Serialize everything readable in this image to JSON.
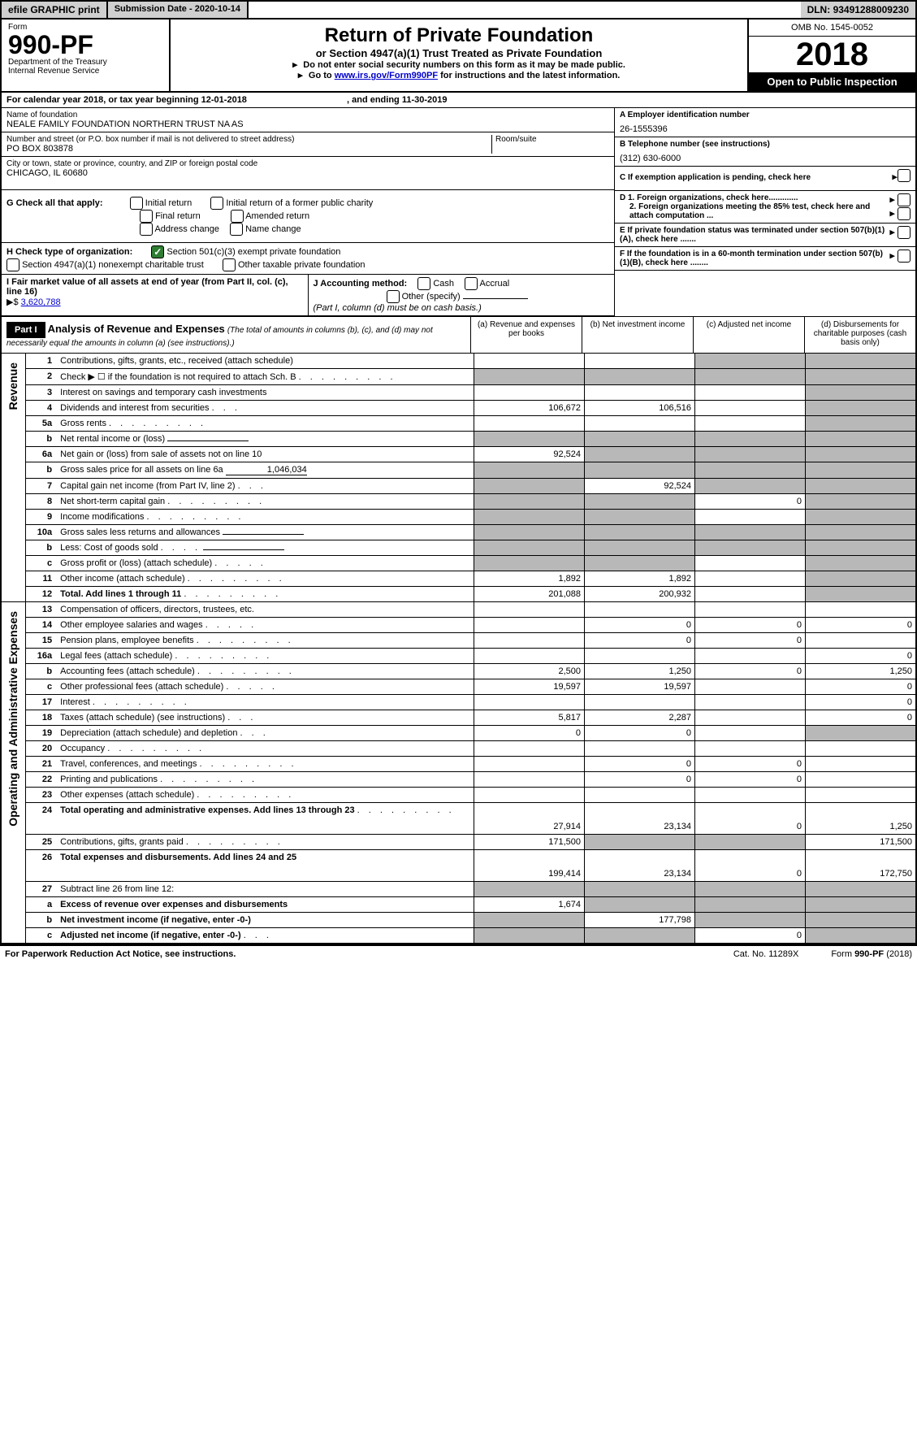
{
  "topbar": {
    "efile": "efile GRAPHIC print",
    "submission_label": "Submission Date - ",
    "submission_date": "2020-10-14",
    "dln_label": "DLN: ",
    "dln": "93491288009230"
  },
  "header": {
    "form_label": "Form",
    "form_no": "990-PF",
    "dept": "Department of the Treasury",
    "irs": "Internal Revenue Service",
    "title": "Return of Private Foundation",
    "subtitle": "or Section 4947(a)(1) Trust Treated as Private Foundation",
    "instr1": "Do not enter social security numbers on this form as it may be made public.",
    "instr2_pre": "Go to ",
    "instr2_link": "www.irs.gov/Form990PF",
    "instr2_post": " for instructions and the latest information.",
    "omb": "OMB No. 1545-0052",
    "year": "2018",
    "open": "Open to Public Inspection"
  },
  "cal": {
    "text_pre": "For calendar year 2018, or tax year beginning ",
    "begin": "12-01-2018",
    "text_mid": " , and ending ",
    "end": "11-30-2019"
  },
  "id": {
    "name_label": "Name of foundation",
    "name": "NEALE FAMILY FOUNDATION NORTHERN TRUST NA AS",
    "addr_label": "Number and street (or P.O. box number if mail is not delivered to street address)",
    "room_label": "Room/suite",
    "addr": "PO BOX 803878",
    "city_label": "City or town, state or province, country, and ZIP or foreign postal code",
    "city": "CHICAGO, IL  60680",
    "ein_label": "A Employer identification number",
    "ein": "26-1555396",
    "phone_label": "B Telephone number (see instructions)",
    "phone": "(312) 630-6000",
    "c_label": "C If exemption application is pending, check here",
    "d1_label": "D 1. Foreign organizations, check here.............",
    "d2_label": "2. Foreign organizations meeting the 85% test, check here and attach computation ...",
    "e_label": "E If private foundation status was terminated under section 507(b)(1)(A), check here .......",
    "f_label": "F If the foundation is in a 60-month termination under section 507(b)(1)(B), check here ........"
  },
  "g": {
    "label": "G Check all that apply:",
    "opts": [
      "Initial return",
      "Initial return of a former public charity",
      "Final return",
      "Amended return",
      "Address change",
      "Name change"
    ]
  },
  "h": {
    "label": "H Check type of organization:",
    "opt1": "Section 501(c)(3) exempt private foundation",
    "opt2": "Section 4947(a)(1) nonexempt charitable trust",
    "opt3": "Other taxable private foundation"
  },
  "i": {
    "label": "I Fair market value of all assets at end of year (from Part II, col. (c), line 16)",
    "prefix": "▶$",
    "value": "3,620,788"
  },
  "j": {
    "label": "J Accounting method:",
    "cash": "Cash",
    "accrual": "Accrual",
    "other": "Other (specify)",
    "note": "(Part I, column (d) must be on cash basis.)"
  },
  "part1": {
    "tag": "Part I",
    "title": "Analysis of Revenue and Expenses",
    "note": "(The total of amounts in columns (b), (c), and (d) may not necessarily equal the amounts in column (a) (see instructions).)",
    "col_a": "(a) Revenue and expenses per books",
    "col_b": "(b) Net investment income",
    "col_c": "(c) Adjusted net income",
    "col_d": "(d) Disbursements for charitable purposes (cash basis only)"
  },
  "vert": {
    "revenue": "Revenue",
    "expenses": "Operating and Administrative Expenses"
  },
  "rows": [
    {
      "n": "1",
      "d": "Contributions, gifts, grants, etc., received (attach schedule)",
      "a": "",
      "b": "",
      "c": "",
      "dd": "",
      "ga": false,
      "gb": false,
      "gc": true,
      "gd": true
    },
    {
      "n": "2",
      "d": "Check ▶ ☐ if the foundation is not required to attach Sch. B",
      "a": "",
      "b": "",
      "c": "",
      "dd": "",
      "ga": true,
      "gb": true,
      "gc": true,
      "gd": true,
      "dots": true
    },
    {
      "n": "3",
      "d": "Interest on savings and temporary cash investments",
      "a": "",
      "b": "",
      "c": "",
      "dd": "",
      "ga": false,
      "gb": false,
      "gc": false,
      "gd": true
    },
    {
      "n": "4",
      "d": "Dividends and interest from securities",
      "a": "106,672",
      "b": "106,516",
      "c": "",
      "dd": "",
      "ga": false,
      "gb": false,
      "gc": false,
      "gd": true,
      "dots3": true
    },
    {
      "n": "5a",
      "d": "Gross rents",
      "a": "",
      "b": "",
      "c": "",
      "dd": "",
      "ga": false,
      "gb": false,
      "gc": false,
      "gd": true,
      "dots": true
    },
    {
      "n": "b",
      "d": "Net rental income or (loss)",
      "a": "",
      "b": "",
      "c": "",
      "dd": "",
      "ga": true,
      "gb": true,
      "gc": true,
      "gd": true,
      "inline": true
    },
    {
      "n": "6a",
      "d": "Net gain or (loss) from sale of assets not on line 10",
      "a": "92,524",
      "b": "",
      "c": "",
      "dd": "",
      "ga": false,
      "gb": true,
      "gc": true,
      "gd": true
    },
    {
      "n": "b",
      "d": "Gross sales price for all assets on line 6a",
      "a": "",
      "b": "",
      "c": "",
      "dd": "",
      "ga": true,
      "gb": true,
      "gc": true,
      "gd": true,
      "inline": true,
      "inline_val": "1,046,034"
    },
    {
      "n": "7",
      "d": "Capital gain net income (from Part IV, line 2)",
      "a": "",
      "b": "92,524",
      "c": "",
      "dd": "",
      "ga": true,
      "gb": false,
      "gc": true,
      "gd": true,
      "dots3": true
    },
    {
      "n": "8",
      "d": "Net short-term capital gain",
      "a": "",
      "b": "",
      "c": "0",
      "dd": "",
      "ga": true,
      "gb": true,
      "gc": false,
      "gd": true,
      "dots": true
    },
    {
      "n": "9",
      "d": "Income modifications",
      "a": "",
      "b": "",
      "c": "",
      "dd": "",
      "ga": true,
      "gb": true,
      "gc": false,
      "gd": true,
      "dots": true
    },
    {
      "n": "10a",
      "d": "Gross sales less returns and allowances",
      "a": "",
      "b": "",
      "c": "",
      "dd": "",
      "ga": true,
      "gb": true,
      "gc": true,
      "gd": true,
      "inline": true
    },
    {
      "n": "b",
      "d": "Less: Cost of goods sold",
      "a": "",
      "b": "",
      "c": "",
      "dd": "",
      "ga": true,
      "gb": true,
      "gc": true,
      "gd": true,
      "inline": true,
      "dots4": true
    },
    {
      "n": "c",
      "d": "Gross profit or (loss) (attach schedule)",
      "a": "",
      "b": "",
      "c": "",
      "dd": "",
      "ga": true,
      "gb": true,
      "gc": false,
      "gd": true,
      "dots5": true
    },
    {
      "n": "11",
      "d": "Other income (attach schedule)",
      "a": "1,892",
      "b": "1,892",
      "c": "",
      "dd": "",
      "ga": false,
      "gb": false,
      "gc": false,
      "gd": true,
      "dots": true
    },
    {
      "n": "12",
      "d": "Total. Add lines 1 through 11",
      "a": "201,088",
      "b": "200,932",
      "c": "",
      "dd": "",
      "ga": false,
      "gb": false,
      "gc": false,
      "gd": true,
      "bold": true,
      "dots": true
    },
    {
      "n": "13",
      "d": "Compensation of officers, directors, trustees, etc.",
      "a": "",
      "b": "",
      "c": "",
      "dd": "",
      "ga": false,
      "gb": false,
      "gc": false,
      "gd": false
    },
    {
      "n": "14",
      "d": "Other employee salaries and wages",
      "a": "",
      "b": "0",
      "c": "0",
      "dd": "0",
      "ga": false,
      "gb": false,
      "gc": false,
      "gd": false,
      "dots5": true
    },
    {
      "n": "15",
      "d": "Pension plans, employee benefits",
      "a": "",
      "b": "0",
      "c": "0",
      "dd": "",
      "ga": false,
      "gb": false,
      "gc": false,
      "gd": false,
      "dots": true
    },
    {
      "n": "16a",
      "d": "Legal fees (attach schedule)",
      "a": "",
      "b": "",
      "c": "",
      "dd": "0",
      "ga": false,
      "gb": false,
      "gc": false,
      "gd": false,
      "dots": true
    },
    {
      "n": "b",
      "d": "Accounting fees (attach schedule)",
      "a": "2,500",
      "b": "1,250",
      "c": "0",
      "dd": "1,250",
      "ga": false,
      "gb": false,
      "gc": false,
      "gd": false,
      "dots": true
    },
    {
      "n": "c",
      "d": "Other professional fees (attach schedule)",
      "a": "19,597",
      "b": "19,597",
      "c": "",
      "dd": "0",
      "ga": false,
      "gb": false,
      "gc": false,
      "gd": false,
      "dots5": true
    },
    {
      "n": "17",
      "d": "Interest",
      "a": "",
      "b": "",
      "c": "",
      "dd": "0",
      "ga": false,
      "gb": false,
      "gc": false,
      "gd": false,
      "dots": true
    },
    {
      "n": "18",
      "d": "Taxes (attach schedule) (see instructions)",
      "a": "5,817",
      "b": "2,287",
      "c": "",
      "dd": "0",
      "ga": false,
      "gb": false,
      "gc": false,
      "gd": false,
      "dots3": true
    },
    {
      "n": "19",
      "d": "Depreciation (attach schedule) and depletion",
      "a": "0",
      "b": "0",
      "c": "",
      "dd": "",
      "ga": false,
      "gb": false,
      "gc": false,
      "gd": true,
      "dots3": true
    },
    {
      "n": "20",
      "d": "Occupancy",
      "a": "",
      "b": "",
      "c": "",
      "dd": "",
      "ga": false,
      "gb": false,
      "gc": false,
      "gd": false,
      "dots": true
    },
    {
      "n": "21",
      "d": "Travel, conferences, and meetings",
      "a": "",
      "b": "0",
      "c": "0",
      "dd": "",
      "ga": false,
      "gb": false,
      "gc": false,
      "gd": false,
      "dots": true
    },
    {
      "n": "22",
      "d": "Printing and publications",
      "a": "",
      "b": "0",
      "c": "0",
      "dd": "",
      "ga": false,
      "gb": false,
      "gc": false,
      "gd": false,
      "dots": true
    },
    {
      "n": "23",
      "d": "Other expenses (attach schedule)",
      "a": "",
      "b": "",
      "c": "",
      "dd": "",
      "ga": false,
      "gb": false,
      "gc": false,
      "gd": false,
      "dots": true
    },
    {
      "n": "24",
      "d": "Total operating and administrative expenses. Add lines 13 through 23",
      "a": "27,914",
      "b": "23,134",
      "c": "0",
      "dd": "1,250",
      "ga": false,
      "gb": false,
      "gc": false,
      "gd": false,
      "bold": true,
      "dots": true,
      "tall": true
    },
    {
      "n": "25",
      "d": "Contributions, gifts, grants paid",
      "a": "171,500",
      "b": "",
      "c": "",
      "dd": "171,500",
      "ga": false,
      "gb": true,
      "gc": true,
      "gd": false,
      "dots": true
    },
    {
      "n": "26",
      "d": "Total expenses and disbursements. Add lines 24 and 25",
      "a": "199,414",
      "b": "23,134",
      "c": "0",
      "dd": "172,750",
      "ga": false,
      "gb": false,
      "gc": false,
      "gd": false,
      "bold": true,
      "tall": true
    },
    {
      "n": "27",
      "d": "Subtract line 26 from line 12:",
      "a": "",
      "b": "",
      "c": "",
      "dd": "",
      "ga": true,
      "gb": true,
      "gc": true,
      "gd": true
    },
    {
      "n": "a",
      "d": "Excess of revenue over expenses and disbursements",
      "a": "1,674",
      "b": "",
      "c": "",
      "dd": "",
      "ga": false,
      "gb": true,
      "gc": true,
      "gd": true,
      "bold": true
    },
    {
      "n": "b",
      "d": "Net investment income (if negative, enter -0-)",
      "a": "",
      "b": "177,798",
      "c": "",
      "dd": "",
      "ga": true,
      "gb": false,
      "gc": true,
      "gd": true,
      "bold": true
    },
    {
      "n": "c",
      "d": "Adjusted net income (if negative, enter -0-)",
      "a": "",
      "b": "",
      "c": "0",
      "dd": "",
      "ga": true,
      "gb": true,
      "gc": false,
      "gd": true,
      "bold": true,
      "dots3": true,
      "bb": true
    }
  ],
  "footer": {
    "left": "For Paperwork Reduction Act Notice, see instructions.",
    "mid": "Cat. No. 11289X",
    "right_pre": "Form ",
    "right_form": "990-PF",
    "right_post": " (2018)"
  }
}
